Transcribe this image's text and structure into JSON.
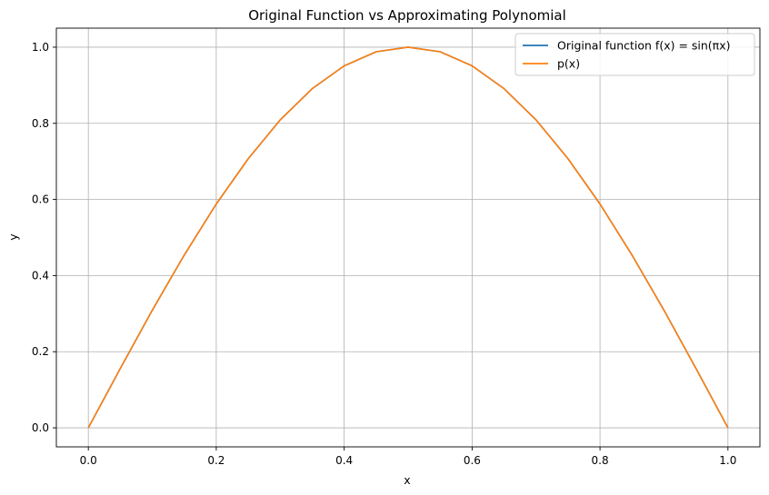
{
  "chart_data": {
    "type": "line",
    "title": "Original Function vs Approximating Polynomial",
    "xlabel": "x",
    "ylabel": "y",
    "xlim": [
      -0.05,
      1.05
    ],
    "ylim": [
      -0.05,
      1.05
    ],
    "x_ticks": [
      0.0,
      0.2,
      0.4,
      0.6,
      0.8,
      1.0
    ],
    "x_tick_labels": [
      "0.0",
      "0.2",
      "0.4",
      "0.6",
      "0.8",
      "1.0"
    ],
    "y_ticks": [
      0.0,
      0.2,
      0.4,
      0.6,
      0.8,
      1.0
    ],
    "y_tick_labels": [
      "0.0",
      "0.2",
      "0.4",
      "0.6",
      "0.8",
      "1.0"
    ],
    "grid": true,
    "legend_position": "top-right",
    "x": [
      0.0,
      0.05,
      0.1,
      0.15,
      0.2,
      0.25,
      0.3,
      0.35,
      0.4,
      0.45,
      0.5,
      0.55,
      0.6,
      0.65,
      0.7,
      0.75,
      0.8,
      0.85,
      0.9,
      0.95,
      1.0
    ],
    "series": [
      {
        "name": "Original function f(x) = sin(πx)",
        "color": "#1f77b4",
        "values": [
          0.0,
          0.156,
          0.309,
          0.454,
          0.588,
          0.707,
          0.809,
          0.891,
          0.951,
          0.988,
          1.0,
          0.988,
          0.951,
          0.891,
          0.809,
          0.707,
          0.588,
          0.454,
          0.309,
          0.156,
          0.0
        ]
      },
      {
        "name": "p(x)",
        "color": "#ff7f0e",
        "values": [
          0.0,
          0.156,
          0.309,
          0.454,
          0.588,
          0.707,
          0.809,
          0.891,
          0.951,
          0.988,
          1.0,
          0.988,
          0.951,
          0.891,
          0.809,
          0.707,
          0.588,
          0.454,
          0.309,
          0.156,
          0.0
        ]
      }
    ]
  }
}
